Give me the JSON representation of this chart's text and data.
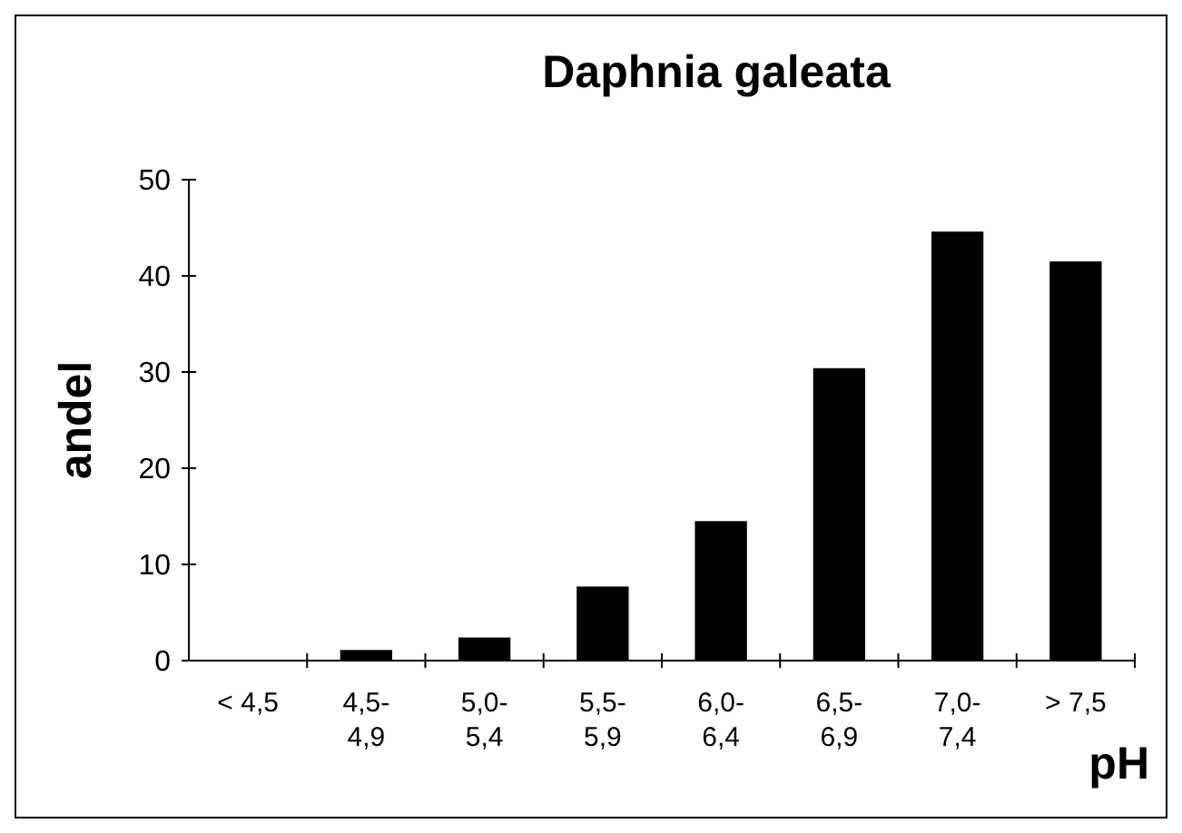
{
  "chart_data": {
    "type": "bar",
    "title": "Daphnia galeata",
    "xlabel": "pH",
    "ylabel": "andel",
    "categories": [
      "< 4,5",
      "4,5-4,9",
      "5,0-5,4",
      "5,5-5,9",
      "6,0-6,4",
      "6,5-6,9",
      "7,0-7,4",
      "> 7,5"
    ],
    "values": [
      0,
      1.1,
      2.4,
      7.7,
      14.5,
      30.4,
      44.6,
      41.5
    ],
    "color": "#000000",
    "ylim": [
      0,
      50
    ],
    "yticks": [
      0,
      10,
      20,
      30,
      40,
      50
    ],
    "grid": false
  }
}
